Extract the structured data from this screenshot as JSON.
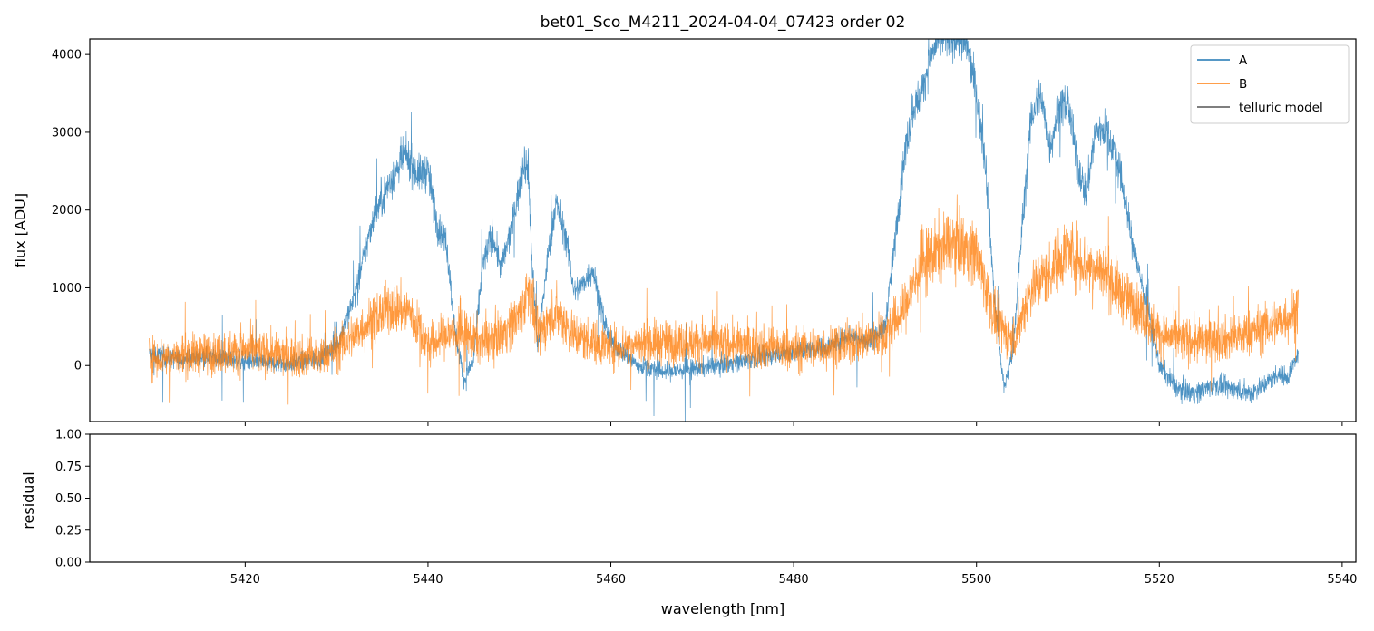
{
  "chart_data": [
    {
      "type": "line",
      "title": "bet01_Sco_M4211_2024-04-04_07423  order 02",
      "xlabel": "",
      "ylabel": "flux [ADU]",
      "xlim": [
        5403,
        5541.5
      ],
      "ylim": [
        -720,
        4200
      ],
      "x_ticks": [
        5420,
        5440,
        5460,
        5480,
        5500,
        5520,
        5540
      ],
      "y_ticks": [
        0,
        1000,
        2000,
        3000,
        4000
      ],
      "y_tick_labels": [
        "0",
        "1000",
        "2000",
        "3000",
        "4000"
      ],
      "grid": false,
      "legend_position": "top-right",
      "legend": [
        "A",
        "B",
        "telluric model"
      ],
      "colors": {
        "A": "#1f77b4",
        "B": "#ff7f0e",
        "telluric model": "#555555"
      },
      "series": [
        {
          "name": "A",
          "x": [
            5409.5,
            5412,
            5416,
            5420,
            5424,
            5428,
            5430,
            5432,
            5434,
            5436,
            5437.5,
            5439,
            5440,
            5441,
            5442,
            5443,
            5444,
            5445,
            5446,
            5447,
            5448,
            5449,
            5450,
            5450.5,
            5451,
            5451.3,
            5452,
            5453,
            5454,
            5455,
            5456,
            5457,
            5458,
            5459,
            5460,
            5463,
            5466,
            5470,
            5474,
            5478,
            5481,
            5484,
            5486,
            5488,
            5490,
            5491,
            5492,
            5493,
            5494,
            5495,
            5496,
            5497,
            5498,
            5499,
            5500,
            5501,
            5502,
            5503,
            5504,
            5505,
            5506,
            5507,
            5508,
            5509,
            5510,
            5511,
            5512,
            5513,
            5514,
            5515,
            5516,
            5517,
            5518,
            5519,
            5520,
            5522,
            5524,
            5526,
            5528,
            5530,
            5532,
            5533,
            5534,
            5535.2
          ],
          "y": [
            150,
            80,
            120,
            60,
            20,
            80,
            250,
            900,
            1900,
            2400,
            2700,
            2450,
            2500,
            1800,
            1600,
            400,
            -200,
            100,
            1300,
            1700,
            1250,
            1700,
            2300,
            2650,
            2500,
            1500,
            200,
            1300,
            2100,
            1700,
            950,
            1050,
            1250,
            700,
            300,
            0,
            -80,
            -30,
            50,
            150,
            200,
            250,
            400,
            300,
            500,
            1500,
            2600,
            3300,
            3500,
            4000,
            4200,
            4200,
            4200,
            4100,
            3500,
            2600,
            800,
            -300,
            200,
            1800,
            3200,
            3500,
            2800,
            3300,
            3400,
            2600,
            2200,
            3000,
            3050,
            2800,
            2300,
            1600,
            1100,
            600,
            0,
            -300,
            -350,
            -250,
            -300,
            -350,
            -200,
            -100,
            -150,
            150
          ]
        },
        {
          "name": "B",
          "x": [
            5409.5,
            5412,
            5416,
            5420,
            5424,
            5428,
            5430,
            5432,
            5434,
            5436,
            5438,
            5440,
            5442,
            5444,
            5446,
            5448,
            5450,
            5451,
            5452,
            5454,
            5456,
            5458,
            5460,
            5465,
            5470,
            5475,
            5480,
            5485,
            5490,
            5492,
            5494,
            5496,
            5498,
            5500,
            5502,
            5504,
            5506,
            5508,
            5510,
            5512,
            5514,
            5516,
            5518,
            5520,
            5524,
            5528,
            5532,
            5535.2
          ],
          "y": [
            100,
            120,
            150,
            200,
            130,
            100,
            200,
            400,
            600,
            750,
            700,
            250,
            400,
            400,
            300,
            400,
            650,
            1000,
            400,
            700,
            400,
            300,
            250,
            300,
            300,
            250,
            200,
            250,
            400,
            700,
            1300,
            1500,
            1600,
            1450,
            600,
            300,
            1000,
            1200,
            1500,
            1300,
            1200,
            900,
            700,
            400,
            300,
            350,
            500,
            700
          ]
        },
        {
          "name": "telluric model",
          "x": [],
          "y": []
        }
      ]
    },
    {
      "type": "line",
      "title": "",
      "xlabel": "wavelength [nm]",
      "ylabel": "residual",
      "xlim": [
        5403,
        5541.5
      ],
      "ylim": [
        0,
        1
      ],
      "x_ticks": [
        5420,
        5440,
        5460,
        5480,
        5500,
        5520,
        5540
      ],
      "x_tick_labels": [
        "5420",
        "5440",
        "5460",
        "5480",
        "5500",
        "5520",
        "5540"
      ],
      "y_ticks": [
        0,
        0.25,
        0.5,
        0.75,
        1.0
      ],
      "y_tick_labels": [
        "0.00",
        "0.25",
        "0.50",
        "0.75",
        "1.00"
      ],
      "grid": false,
      "series": []
    }
  ]
}
